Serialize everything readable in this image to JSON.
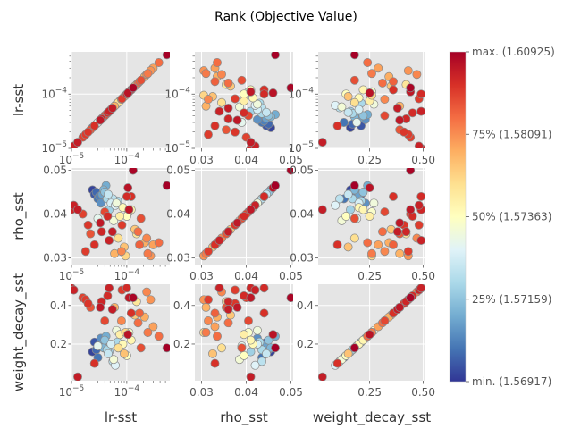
{
  "chart_data": {
    "type": "scatter",
    "subtype": "pairwise-scatter-matrix",
    "title": "Rank (Objective Value)",
    "params": [
      {
        "name": "lr-sst",
        "scale": "log",
        "range": [
          1e-05,
          0.0006
        ],
        "ticks": [
          {
            "v": 1e-05,
            "t": "10",
            "e": "−5"
          },
          {
            "v": 0.0001,
            "t": "10",
            "e": "−4"
          }
        ]
      },
      {
        "name": "rho_sst",
        "scale": "linear",
        "range": [
          0.0285,
          0.0505
        ],
        "ticks": [
          {
            "v": 0.03,
            "t": "0.03"
          },
          {
            "v": 0.04,
            "t": "0.04"
          },
          {
            "v": 0.05,
            "t": "0.05"
          }
        ]
      },
      {
        "name": "weight_decay_sst",
        "scale": "linear",
        "range": [
          0.01,
          0.51
        ],
        "ticks": [
          {
            "v": 0.25,
            "t": "0.25"
          },
          {
            "v": 0.5,
            "t": "0.50"
          }
        ],
        "yticks": [
          {
            "v": 0.2,
            "t": "0.2"
          },
          {
            "v": 0.4,
            "t": "0.4"
          }
        ]
      }
    ],
    "colorbar": {
      "colormap": "RdYlBu_r",
      "ticks": [
        {
          "pos": 0,
          "label": "min. (1.56917)"
        },
        {
          "pos": 0.25,
          "label": "25% (1.57159)"
        },
        {
          "pos": 0.5,
          "label": "50% (1.57363)"
        },
        {
          "pos": 0.75,
          "label": "75% (1.58091)"
        },
        {
          "pos": 1,
          "label": "max. (1.60925)"
        }
      ]
    },
    "columns": [
      "lr",
      "rho",
      "wd",
      "rank"
    ],
    "points": [
      [
        0.00053,
        0.0465,
        0.18,
        1.0
      ],
      [
        0.00013,
        0.05,
        0.44,
        0.99
      ],
      [
        1.1e-05,
        0.042,
        0.48,
        0.93
      ],
      [
        1e-05,
        0.041,
        0.49,
        0.92
      ],
      [
        0.0001,
        0.044,
        0.49,
        0.91
      ],
      [
        1.3e-05,
        0.041,
        0.03,
        0.94
      ],
      [
        2.6e-05,
        0.033,
        0.1,
        0.9
      ],
      [
        3.5e-05,
        0.036,
        0.42,
        0.92
      ],
      [
        4.8e-05,
        0.034,
        0.49,
        0.93
      ],
      [
        3.3e-05,
        0.038,
        0.39,
        0.95
      ],
      [
        2e-05,
        0.0375,
        0.41,
        0.89
      ],
      [
        5.5e-05,
        0.036,
        0.38,
        0.94
      ],
      [
        1.8e-05,
        0.0315,
        0.43,
        0.88
      ],
      [
        0.00011,
        0.041,
        0.44,
        0.95
      ],
      [
        4e-05,
        0.0405,
        0.32,
        0.86
      ],
      [
        0.00012,
        0.044,
        0.36,
        0.9
      ],
      [
        0.000105,
        0.046,
        0.25,
        0.96
      ],
      [
        0.00018,
        0.039,
        0.18,
        0.85
      ],
      [
        0.00024,
        0.031,
        0.26,
        0.78
      ],
      [
        0.00016,
        0.036,
        0.31,
        0.8
      ],
      [
        0.0003,
        0.033,
        0.29,
        0.72
      ],
      [
        0.00021,
        0.0335,
        0.34,
        0.7
      ],
      [
        0.00027,
        0.0305,
        0.43,
        0.74
      ],
      [
        8e-05,
        0.0315,
        0.32,
        0.76
      ],
      [
        9e-05,
        0.0325,
        0.15,
        0.66
      ],
      [
        7e-05,
        0.0345,
        0.18,
        0.6
      ],
      [
        9.5e-05,
        0.0305,
        0.26,
        0.62
      ],
      [
        7.5e-05,
        0.0395,
        0.25,
        0.55
      ],
      [
        8.5e-05,
        0.0415,
        0.2,
        0.52
      ],
      [
        0.0001,
        0.0395,
        0.14,
        0.5
      ],
      [
        0.00011,
        0.0405,
        0.26,
        0.48
      ],
      [
        6.5e-05,
        0.0425,
        0.27,
        0.45
      ],
      [
        5.8e-05,
        0.0385,
        0.12,
        0.46
      ],
      [
        0.00012,
        0.041,
        0.22,
        0.53
      ],
      [
        6.2e-05,
        0.042,
        0.09,
        0.4
      ],
      [
        5.2e-05,
        0.0425,
        0.2,
        0.38
      ],
      [
        4.6e-05,
        0.0445,
        0.15,
        0.35
      ],
      [
        4.4e-05,
        0.0435,
        0.17,
        0.3
      ],
      [
        4e-05,
        0.045,
        0.22,
        0.25
      ],
      [
        3.8e-05,
        0.0455,
        0.18,
        0.22
      ],
      [
        3.6e-05,
        0.0445,
        0.2,
        0.18
      ],
      [
        3.4e-05,
        0.0425,
        0.23,
        0.15
      ],
      [
        3.2e-05,
        0.044,
        0.19,
        0.12
      ],
      [
        3e-05,
        0.0435,
        0.13,
        0.1
      ],
      [
        2.8e-05,
        0.045,
        0.17,
        0.08
      ],
      [
        2.6e-05,
        0.0445,
        0.21,
        0.05
      ],
      [
        2.4e-05,
        0.0455,
        0.16,
        0.02
      ],
      [
        4.2e-05,
        0.0465,
        0.24,
        0.2
      ],
      [
        4.8e-05,
        0.041,
        0.16,
        0.28
      ],
      [
        5.6e-05,
        0.0435,
        0.11,
        0.33
      ],
      [
        3e-05,
        0.039,
        0.19,
        0.42
      ],
      [
        6.8e-05,
        0.043,
        0.21,
        0.3
      ],
      [
        0.00014,
        0.0365,
        0.35,
        0.65
      ],
      [
        0.00015,
        0.0355,
        0.42,
        0.58
      ],
      [
        0.00017,
        0.033,
        0.36,
        0.82
      ],
      [
        2.2e-05,
        0.0355,
        0.39,
        0.84
      ],
      [
        6e-05,
        0.031,
        0.39,
        0.69
      ],
      [
        0.00023,
        0.0345,
        0.47,
        0.76
      ],
      [
        1.6e-05,
        0.04,
        0.44,
        0.87
      ],
      [
        0.00038,
        0.0335,
        0.24,
        0.8
      ],
      [
        8.2e-05,
        0.0375,
        0.48,
        0.88
      ],
      [
        4.5e-05,
        0.0395,
        0.45,
        0.91
      ]
    ]
  }
}
